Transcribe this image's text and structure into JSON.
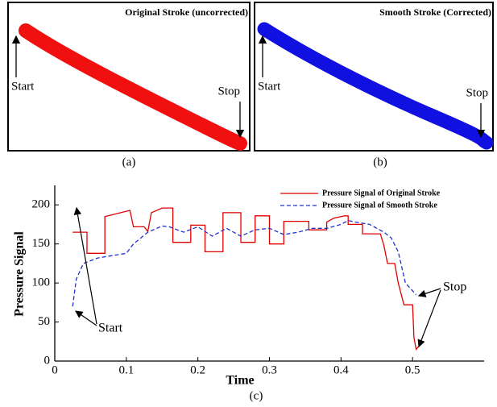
{
  "panels": [
    {
      "title": "Original Stroke (uncorrected)",
      "start": "Start",
      "stop": "Stop",
      "caption": "(a)"
    },
    {
      "title": "Smooth Stroke (Corrected)",
      "start": "Start",
      "stop": "Stop",
      "caption": "(b)"
    }
  ],
  "chart_data": {
    "type": "line",
    "xlabel": "Time",
    "ylabel": "Pressure Signal",
    "caption": "(c)",
    "annotations": [
      "Start",
      "Stop"
    ],
    "xlim": [
      0,
      0.6
    ],
    "ylim": [
      0,
      225
    ],
    "xticks": [
      0,
      0.1,
      0.2,
      0.3,
      0.4,
      0.5
    ],
    "yticks": [
      0,
      50,
      100,
      150,
      200
    ],
    "series": [
      {
        "name": "Pressure Signal of Original Stroke",
        "color": "#e00000",
        "dash": false,
        "x": [
          0.025,
          0.045,
          0.045,
          0.07,
          0.07,
          0.105,
          0.11,
          0.125,
          0.13,
          0.135,
          0.15,
          0.165,
          0.165,
          0.19,
          0.19,
          0.21,
          0.21,
          0.235,
          0.235,
          0.26,
          0.26,
          0.28,
          0.28,
          0.3,
          0.3,
          0.32,
          0.32,
          0.355,
          0.355,
          0.38,
          0.38,
          0.39,
          0.405,
          0.41,
          0.41,
          0.43,
          0.43,
          0.455,
          0.46,
          0.465,
          0.475,
          0.48,
          0.488,
          0.5,
          0.502,
          0.505,
          0.51
        ],
        "values": [
          165,
          165,
          138,
          138,
          185,
          193,
          172,
          172,
          166,
          190,
          196,
          196,
          152,
          152,
          174,
          174,
          140,
          140,
          190,
          190,
          152,
          152,
          186,
          186,
          150,
          150,
          179,
          179,
          168,
          168,
          178,
          183,
          186,
          186,
          175,
          175,
          163,
          163,
          148,
          125,
          125,
          100,
          72,
          72,
          30,
          15,
          20
        ]
      },
      {
        "name": "Pressure Signal of Smooth Stroke",
        "color": "#2030d0",
        "dash": true,
        "x": [
          0.025,
          0.03,
          0.04,
          0.06,
          0.08,
          0.1,
          0.11,
          0.13,
          0.15,
          0.16,
          0.18,
          0.2,
          0.22,
          0.24,
          0.26,
          0.28,
          0.3,
          0.32,
          0.34,
          0.36,
          0.38,
          0.4,
          0.41,
          0.42,
          0.44,
          0.46,
          0.47,
          0.48,
          0.49,
          0.5,
          0.505
        ],
        "values": [
          70,
          105,
          125,
          132,
          135,
          138,
          150,
          165,
          173,
          172,
          165,
          172,
          160,
          170,
          160,
          168,
          170,
          162,
          165,
          170,
          170,
          175,
          180,
          178,
          175,
          165,
          158,
          140,
          100,
          90,
          85
        ]
      }
    ]
  }
}
